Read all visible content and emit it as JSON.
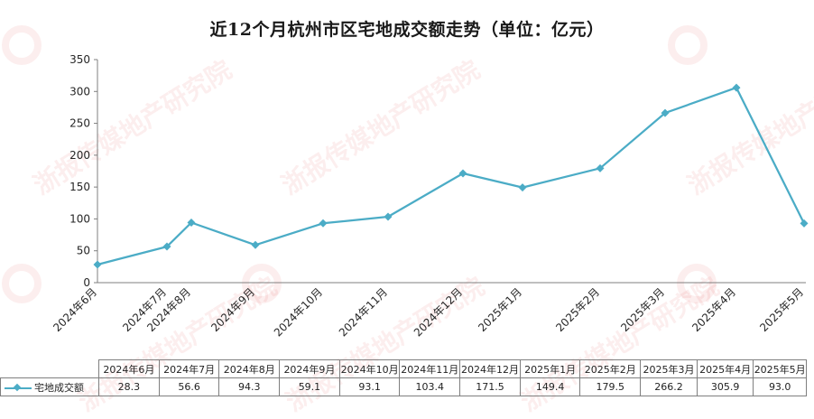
{
  "chart_data": {
    "type": "line",
    "title": "近12个月杭州市区宅地成交额走势（单位：亿元）",
    "categories": [
      "2024年6月",
      "2024年7月",
      "2024年8月",
      "2024年9月",
      "2024年10月",
      "2024年11月",
      "2024年12月",
      "2025年1月",
      "2025年2月",
      "2025年3月",
      "2025年4月",
      "2025年5月"
    ],
    "series": [
      {
        "name": "宅地成交额",
        "values": [
          28.3,
          56.6,
          94.3,
          59.1,
          93.1,
          103.4,
          171.5,
          149.4,
          179.5,
          266.2,
          305.9,
          93.0
        ],
        "display_values": [
          "28.3",
          "56.6",
          "94.3",
          "59.1",
          "93.1",
          "103.4",
          "171.5",
          "149.4",
          "179.5",
          "266.2",
          "305.9",
          "93.0"
        ],
        "color": "#4bacc6"
      }
    ],
    "ylim": [
      0,
      350
    ],
    "yticks": [
      0,
      50,
      100,
      150,
      200,
      250,
      300,
      350
    ],
    "ytick_labels": [
      "0",
      "50",
      "100",
      "150",
      "200",
      "250",
      "300",
      "350"
    ],
    "grid": false,
    "legend": "data-table",
    "data_table": true
  },
  "watermark": {
    "text": "浙报传媒地产研究院",
    "color": "#e15a5a"
  }
}
